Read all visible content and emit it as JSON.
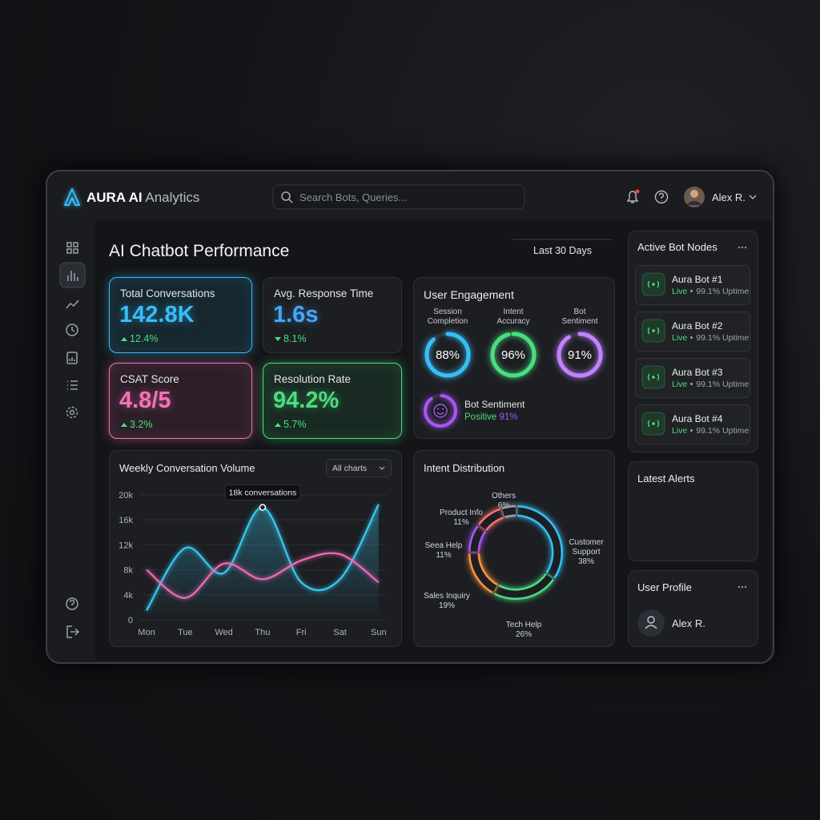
{
  "header": {
    "brand": "AURA AI",
    "brand_suffix": "Analytics",
    "search_placeholder": "Search Bots, Queries...",
    "user": "Alex R."
  },
  "page": {
    "title": "AI Chatbot Performance",
    "date_range": "Last 30 Days"
  },
  "kpis": [
    {
      "label": "Total Conversations",
      "value": "142.8K",
      "change": "12.4%",
      "trend": "up",
      "color": "#38bdf8",
      "highlight": true
    },
    {
      "label": "Avg. Response Time",
      "value": "1.6s",
      "change": "8.1%",
      "trend": "down",
      "color": "#45a6f5",
      "highlight": false
    },
    {
      "label": "CSAT Score",
      "value": "4.8/5",
      "change": "3.2%",
      "trend": "up",
      "color": "#f472b6",
      "highlight": true
    },
    {
      "label": "Resolution Rate",
      "value": "94.2%",
      "change": "5.7%",
      "trend": "up",
      "color": "#4ade80",
      "highlight": true
    }
  ],
  "engagement": {
    "title": "User Engagement",
    "type": "gauge",
    "categories": [
      "Session Completion",
      "Intent Accuracy",
      "Bot Sentiment"
    ],
    "values": [
      88,
      96,
      91
    ],
    "value_labels": [
      "88%",
      "96%",
      "91%"
    ],
    "colors": [
      "#38bdf8",
      "#4ade80",
      "#c084fc"
    ],
    "ylim": [
      0,
      100
    ],
    "sentiment": {
      "label": "Bot Sentiment",
      "status": "Positive",
      "value": 91,
      "value_label": "91%",
      "color": "#a855f7"
    }
  },
  "weekly": {
    "title": "Weekly Conversation Volume",
    "filter": "All charts",
    "type": "line",
    "categories": [
      "Mon",
      "Tue",
      "Wed",
      "Thu",
      "Fri",
      "Sat",
      "Sun"
    ],
    "series": [
      {
        "color": "#38c8f0",
        "values": [
          1500,
          11500,
          7500,
          18000,
          6000,
          6500,
          18500
        ]
      },
      {
        "color": "#f06bb8",
        "values": [
          8000,
          3500,
          9000,
          6500,
          9500,
          10500,
          6000
        ]
      }
    ],
    "ylim": [
      0,
      20000
    ],
    "yticks": [
      0,
      {
        "value": 4000,
        "label": "4k"
      },
      {
        "value": 8000,
        "label": "8k"
      },
      {
        "value": 12000,
        "label": "12k"
      },
      {
        "value": 16000,
        "label": "16k"
      },
      {
        "value": 20000,
        "label": "20k"
      }
    ],
    "grid": true,
    "annotation": "18k conversations"
  },
  "intent": {
    "title": "Intent Distribution",
    "type": "donut",
    "categories": [
      "Customer Support",
      "Tech Help",
      "Sales Inquiry",
      "Seea Help",
      "Product Info",
      "Others"
    ],
    "values": [
      38,
      26,
      19,
      11,
      11,
      6
    ],
    "value_labels": [
      "38%",
      "26%",
      "19%",
      "11%",
      "11%",
      "6%"
    ],
    "colors": [
      "#38bdf8",
      "#4ade80",
      "#fb923c",
      "#a855f7",
      "#f87171",
      "#9ca3af"
    ]
  },
  "nodes": {
    "title": "Active Bot Nodes",
    "items": [
      {
        "name": "Aura Bot #1",
        "status": "Live",
        "uptime": "99.1% Uptime"
      },
      {
        "name": "Aura Bot #2",
        "status": "Live",
        "uptime": "99.1% Uptime"
      },
      {
        "name": "Aura Bot #3",
        "status": "Live",
        "uptime": "99.1% Uptime"
      },
      {
        "name": "Aura Bot #4",
        "status": "Live",
        "uptime": "99.1% Uptime"
      }
    ]
  },
  "alerts": {
    "title": "Latest Alerts"
  },
  "profile": {
    "title": "User Profile",
    "name": "Alex R."
  }
}
